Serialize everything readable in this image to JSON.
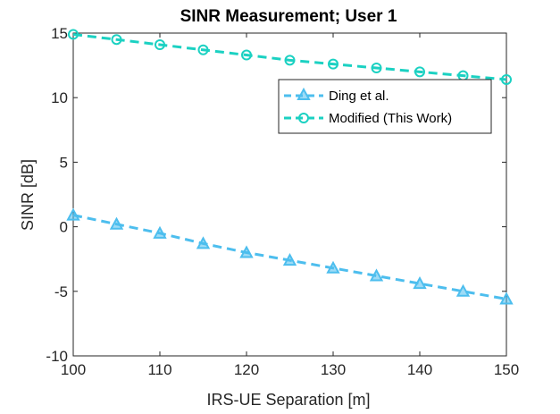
{
  "chart_data": {
    "type": "line",
    "title": "SINR Measurement; User 1",
    "xlabel": "IRS-UE Separation [m]",
    "ylabel": "SINR [dB]",
    "xlim": [
      100,
      150
    ],
    "ylim": [
      -10,
      15
    ],
    "x_ticks": [
      "100",
      "110",
      "120",
      "130",
      "140",
      "150"
    ],
    "y_ticks": [
      "-10",
      "-5",
      "0",
      "5",
      "10",
      "15"
    ],
    "x": [
      100,
      105,
      110,
      115,
      120,
      125,
      130,
      135,
      140,
      145,
      150
    ],
    "grid": false,
    "legend_position": "top-right",
    "series": [
      {
        "name": "Ding et al.",
        "marker": "triangle",
        "line_style": "dashed",
        "color": "#4DBEEE",
        "values": [
          0.9,
          0.2,
          -0.5,
          -1.3,
          -2.0,
          -2.6,
          -3.2,
          -3.8,
          -4.4,
          -5.0,
          -5.6
        ]
      },
      {
        "name": "Modified (This Work)",
        "marker": "circle",
        "line_style": "dashed",
        "color": "#1BD1C2",
        "values": [
          14.9,
          14.5,
          14.1,
          13.7,
          13.3,
          12.9,
          12.6,
          12.3,
          12.0,
          11.7,
          11.4
        ]
      }
    ]
  }
}
